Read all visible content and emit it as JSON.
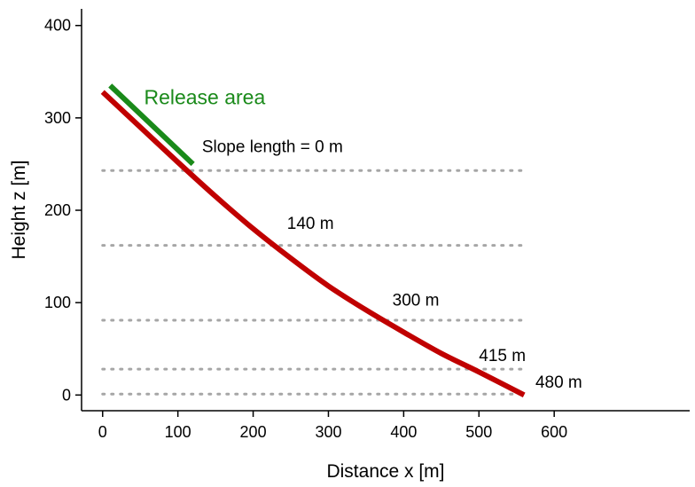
{
  "chart_data": {
    "type": "line",
    "xlabel": "Distance x [m]",
    "ylabel": "Height z [m]",
    "xlim": [
      -28,
      780
    ],
    "ylim": [
      -17,
      418
    ],
    "x_ticks": [
      0,
      100,
      200,
      300,
      400,
      500,
      600
    ],
    "y_ticks": [
      0,
      100,
      200,
      300,
      400
    ],
    "grid": false,
    "series": [
      {
        "role": "slope_profile",
        "color": "#c00000",
        "x": [
          0,
          50,
          100,
          150,
          200,
          250,
          300,
          350,
          400,
          450,
          500,
          560
        ],
        "y": [
          328,
          290,
          252,
          215,
          180,
          148,
          118,
          92,
          68,
          45,
          25,
          0
        ]
      },
      {
        "role": "release_area",
        "color": "#1a8a1a",
        "x": [
          10,
          120
        ],
        "y": [
          335,
          250
        ]
      }
    ],
    "reference_lines": [
      {
        "y": 243,
        "x_end": 565
      },
      {
        "y": 162,
        "x_end": 565
      },
      {
        "y": 81,
        "x_end": 565
      },
      {
        "y": 28,
        "x_end": 565
      },
      {
        "y": 1,
        "x_end": 565
      }
    ],
    "annotations": [
      {
        "text": "Release area",
        "x": 55,
        "y": 315,
        "color": "#1a8a1a",
        "size": "large"
      },
      {
        "text": "Slope length = 0 m",
        "x": 132,
        "y": 263,
        "color": "#000000",
        "size": "normal"
      },
      {
        "text": "140 m",
        "x": 245,
        "y": 180,
        "color": "#000000",
        "size": "normal"
      },
      {
        "text": "300 m",
        "x": 385,
        "y": 97,
        "color": "#000000",
        "size": "normal"
      },
      {
        "text": "415 m",
        "x": 500,
        "y": 37,
        "color": "#000000",
        "size": "normal"
      },
      {
        "text": "480 m",
        "x": 575,
        "y": 8,
        "color": "#000000",
        "size": "normal"
      }
    ]
  }
}
